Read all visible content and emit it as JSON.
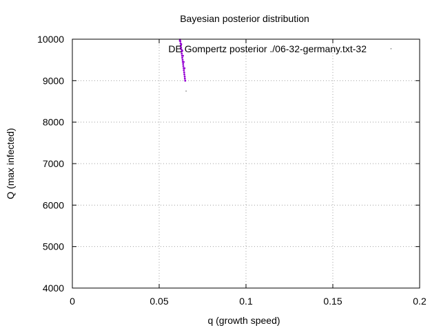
{
  "chart_data": {
    "type": "scatter",
    "title": "Bayesian posterior distribution",
    "xlabel": "q (growth speed)",
    "ylabel": "Q (max infected)",
    "xlim": [
      0,
      0.2
    ],
    "ylim": [
      4000,
      10000
    ],
    "x_ticks": [
      0,
      0.05,
      0.1,
      0.15,
      0.2
    ],
    "x_tick_labels": [
      "0",
      "0.05",
      "0.1",
      "0.15",
      "0.2"
    ],
    "y_ticks": [
      4000,
      5000,
      6000,
      7000,
      8000,
      9000,
      10000
    ],
    "y_tick_labels": [
      "4000",
      "5000",
      "6000",
      "7000",
      "8000",
      "9000",
      "10000"
    ],
    "grid": true,
    "legend_position": "top-right",
    "series": [
      {
        "name": "DE Gompertz posterior ./06-32-germany.txt-32",
        "color": "#9400d3",
        "marker": "dot",
        "points": [
          [
            0.062,
            9990
          ],
          [
            0.0622,
            9950
          ],
          [
            0.0623,
            9900
          ],
          [
            0.0625,
            9850
          ],
          [
            0.0626,
            9800
          ],
          [
            0.0628,
            9750
          ],
          [
            0.0629,
            9700
          ],
          [
            0.063,
            9650
          ],
          [
            0.0632,
            9600
          ],
          [
            0.0633,
            9550
          ],
          [
            0.0635,
            9500
          ],
          [
            0.0636,
            9450
          ],
          [
            0.0638,
            9400
          ],
          [
            0.0639,
            9350
          ],
          [
            0.0641,
            9300
          ],
          [
            0.0642,
            9250
          ],
          [
            0.0644,
            9200
          ],
          [
            0.0645,
            9150
          ],
          [
            0.0647,
            9100
          ],
          [
            0.0648,
            9050
          ],
          [
            0.065,
            9000
          ],
          [
            0.0627,
            9880
          ],
          [
            0.0633,
            9720
          ],
          [
            0.0637,
            9600
          ],
          [
            0.0641,
            9450
          ],
          [
            0.0646,
            9300
          ],
          [
            0.0619,
            9960
          ],
          [
            0.0624,
            9790
          ]
        ]
      }
    ],
    "outliers": [
      {
        "x": 0.0655,
        "y": 8750,
        "color": "#000000"
      },
      {
        "x": 0.1835,
        "y": 9770,
        "color": "#000000"
      }
    ]
  }
}
